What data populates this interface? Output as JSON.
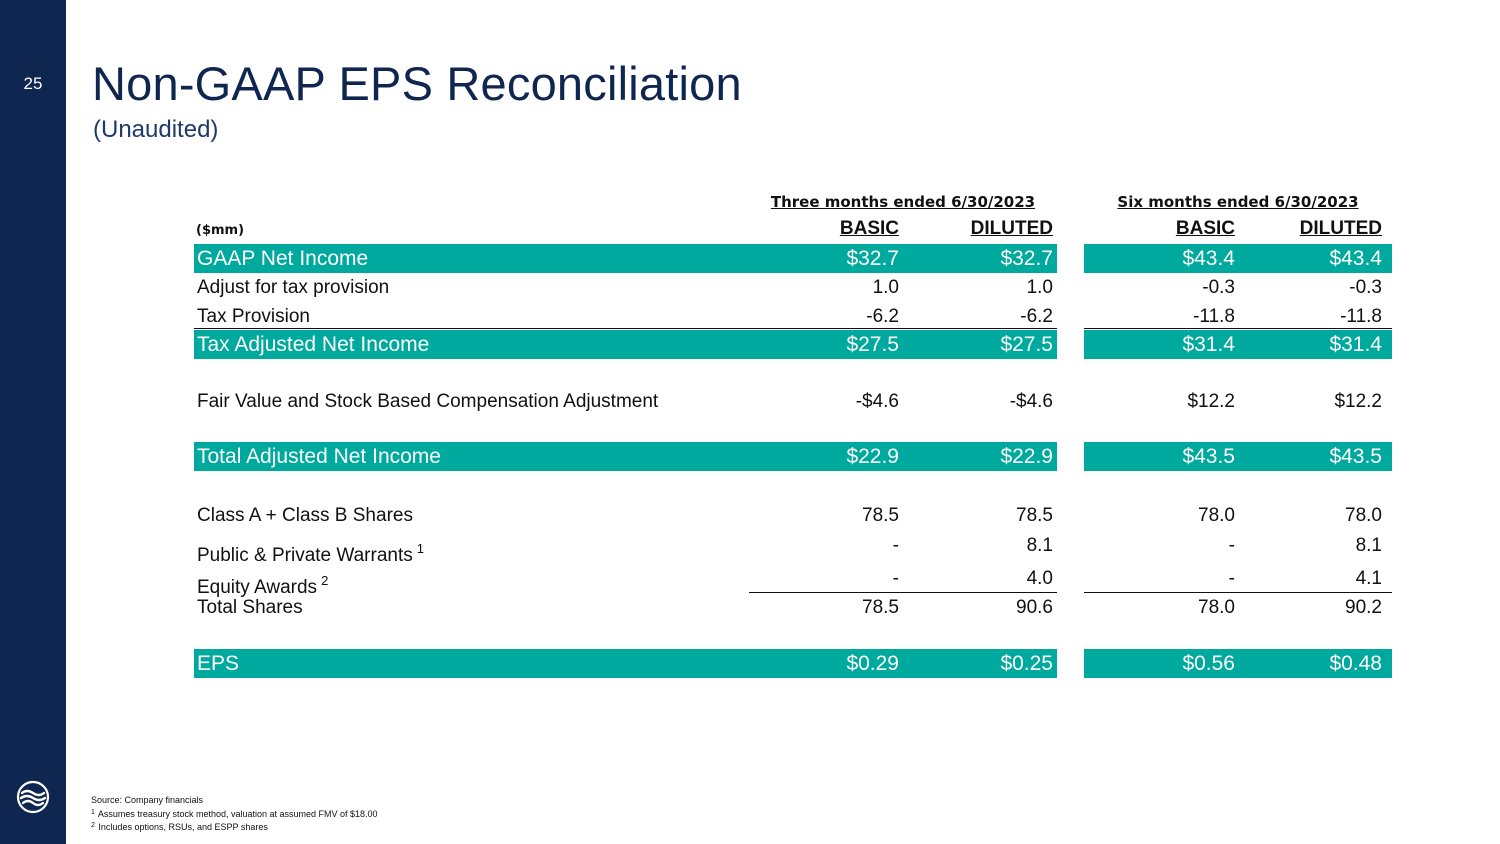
{
  "slide": {
    "page_number": "25",
    "title": "Non-GAAP EPS Reconciliation",
    "subtitle": "(Unaudited)"
  },
  "colors": {
    "sidebar": "#0f2650",
    "accent": "#00a99d",
    "title": "#0f2650"
  },
  "logo_icon": "circular-waves-logo-icon",
  "table": {
    "units_label": "($mm)",
    "group_three_months": "Three months ended 6/30/2023",
    "group_six_months": "Six months ended 6/30/2023",
    "col_basic": "BASIC",
    "col_diluted": "DILUTED",
    "rows": [
      {
        "label": "GAAP Net Income",
        "highlight": true,
        "values": [
          "$32.7",
          "$32.7",
          "$43.4",
          "$43.4"
        ]
      },
      {
        "label": "Adjust for tax provision",
        "highlight": false,
        "values": [
          "1.0",
          "1.0",
          "-0.3",
          "-0.3"
        ]
      },
      {
        "label": "Tax Provision",
        "highlight": false,
        "values": [
          "-6.2",
          "-6.2",
          "-11.8",
          "-11.8"
        ]
      },
      {
        "label": "Tax Adjusted Net Income",
        "highlight": true,
        "values": [
          "$27.5",
          "$27.5",
          "$31.4",
          "$31.4"
        ]
      },
      {
        "label": "Fair Value and Stock Based Compensation Adjustment",
        "highlight": false,
        "values": [
          "-$4.6",
          "-$4.6",
          "$12.2",
          "$12.2"
        ]
      },
      {
        "label": "Total Adjusted Net Income",
        "highlight": true,
        "values": [
          "$22.9",
          "$22.9",
          "$43.5",
          "$43.5"
        ]
      },
      {
        "label": "Class A + Class B Shares",
        "highlight": false,
        "values": [
          "78.5",
          "78.5",
          "78.0",
          "78.0"
        ]
      },
      {
        "label": "Public & Private Warrants",
        "sup": "1",
        "highlight": false,
        "values": [
          "-",
          "8.1",
          "-",
          "8.1"
        ]
      },
      {
        "label": "Equity Awards",
        "sup": "2",
        "highlight": false,
        "values": [
          "-",
          "4.0",
          "-",
          "4.1"
        ]
      },
      {
        "label": "Total Shares",
        "highlight": false,
        "values": [
          "78.5",
          "90.6",
          "78.0",
          "90.2"
        ]
      },
      {
        "label": "EPS",
        "highlight": true,
        "values": [
          "$0.29",
          "$0.25",
          "$0.56",
          "$0.48"
        ]
      }
    ]
  },
  "footnotes": {
    "source": "Source: Company financials",
    "note1_marker": "1",
    "note1": "Assumes treasury stock method, valuation at assumed FMV of $18.00",
    "note2_marker": "2",
    "note2": "Includes options, RSUs, and ESPP shares"
  }
}
